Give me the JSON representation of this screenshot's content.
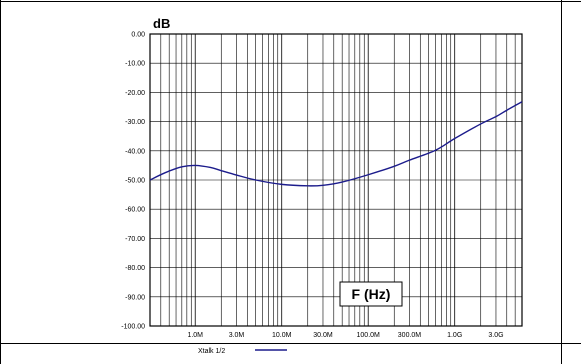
{
  "chart_data": {
    "type": "line",
    "title": "",
    "ylabel": "dB",
    "xlabel": "F (Hz)",
    "x_scale": "log",
    "x_range_hz": [
      300000,
      6000000000
    ],
    "y_range_db": [
      -100,
      0
    ],
    "grid": true,
    "y_ticks": [
      {
        "value": 0,
        "label": "0.00"
      },
      {
        "value": -10,
        "label": "-10.00"
      },
      {
        "value": -20,
        "label": "-20.00"
      },
      {
        "value": -30,
        "label": "-30.00"
      },
      {
        "value": -40,
        "label": "-40.00"
      },
      {
        "value": -50,
        "label": "-50.00"
      },
      {
        "value": -60,
        "label": "-60.00"
      },
      {
        "value": -70,
        "label": "-70.00"
      },
      {
        "value": -80,
        "label": "-80.00"
      },
      {
        "value": -90,
        "label": "-90.00"
      },
      {
        "value": -100,
        "label": "-100.00"
      }
    ],
    "x_ticks": [
      {
        "value": 1000000,
        "label": "1.0M"
      },
      {
        "value": 3000000,
        "label": "3.0M"
      },
      {
        "value": 10000000,
        "label": "10.0M"
      },
      {
        "value": 30000000,
        "label": "30.0M"
      },
      {
        "value": 100000000,
        "label": "100.0M"
      },
      {
        "value": 300000000,
        "label": "300.0M"
      },
      {
        "value": 1000000000,
        "label": "1.0G"
      },
      {
        "value": 3000000000,
        "label": "3.0G"
      }
    ],
    "series": [
      {
        "name": "Xtalk 1/2",
        "color": "#1c1c8c",
        "points": [
          [
            300000,
            -50
          ],
          [
            450000,
            -47.5
          ],
          [
            700000,
            -45.5
          ],
          [
            1000000,
            -45
          ],
          [
            1500000,
            -45.7
          ],
          [
            2000000,
            -46.8
          ],
          [
            3000000,
            -48.3
          ],
          [
            5000000,
            -50
          ],
          [
            10000000,
            -51.5
          ],
          [
            20000000,
            -52
          ],
          [
            30000000,
            -51.8
          ],
          [
            50000000,
            -50.7
          ],
          [
            100000000,
            -48.2
          ],
          [
            200000000,
            -45.3
          ],
          [
            300000000,
            -43.2
          ],
          [
            600000000,
            -39.8
          ],
          [
            1000000000,
            -35.8
          ],
          [
            2000000000,
            -30.8
          ],
          [
            3000000000,
            -28.3
          ],
          [
            4000000000,
            -26.1
          ],
          [
            6000000000,
            -23.2
          ]
        ]
      }
    ]
  }
}
